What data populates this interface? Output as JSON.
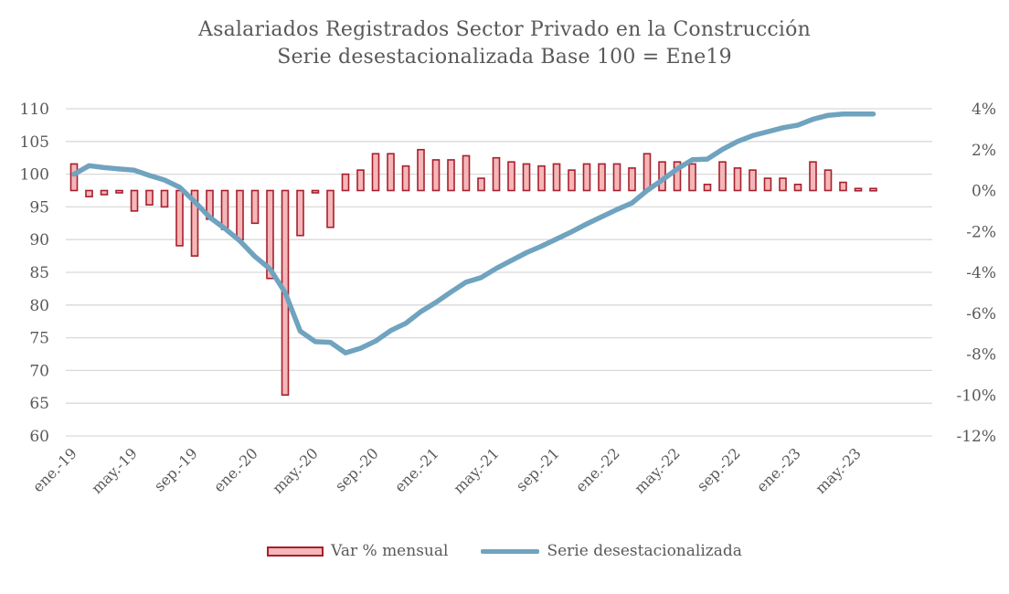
{
  "chart_data": {
    "type": "bar+line",
    "title": "Asalariados Registrados Sector Privado en la Construcción",
    "subtitle": "Serie desestacionalizada Base 100 = Ene19",
    "x_tick_labels": [
      "ene.-19",
      "may.-19",
      "sep.-19",
      "ene.-20",
      "may.-20",
      "sep.-20",
      "ene.-21",
      "may.-21",
      "sep.-21",
      "ene.-22",
      "may.-22",
      "sep.-22",
      "ene.-23",
      "may.-23"
    ],
    "x_start": "2019-01",
    "y_left": {
      "ylim": [
        60,
        110
      ],
      "ticks": [
        60,
        65,
        70,
        75,
        80,
        85,
        90,
        95,
        100,
        105,
        110
      ]
    },
    "y_right": {
      "ylim": [
        -12,
        4
      ],
      "ticks": [
        "-12%",
        "-10%",
        "-8%",
        "-6%",
        "-4%",
        "-2%",
        "0%",
        "2%",
        "4%"
      ]
    },
    "grid": true,
    "legend_position": "bottom",
    "series": [
      {
        "name": "Var % mensual",
        "kind": "bar",
        "axis": "right",
        "color": "#a6202c",
        "fill": "#f4b6b9",
        "values": [
          1.3,
          -0.3,
          -0.2,
          -0.1,
          -1.0,
          -0.7,
          -0.8,
          -2.7,
          -3.2,
          -1.4,
          -1.9,
          -2.4,
          -1.6,
          -4.3,
          -10.0,
          -2.2,
          -0.1,
          -1.8,
          0.8,
          1.0,
          1.8,
          1.8,
          1.2,
          2.0,
          1.5,
          1.5,
          1.7,
          0.6,
          1.6,
          1.4,
          1.3,
          1.2,
          1.3,
          1.0,
          1.3,
          1.3,
          1.3,
          1.1,
          1.8,
          1.4,
          1.4,
          1.3,
          0.3,
          1.4,
          1.1,
          1.0,
          0.6,
          0.6,
          0.3,
          1.4,
          1.0,
          0.4,
          0.1,
          0.1
        ]
      },
      {
        "name": "Serie desestacionalizada",
        "kind": "line",
        "axis": "left",
        "color": "#6fa3bf",
        "values": [
          100.0,
          101.3,
          101.0,
          100.8,
          100.6,
          99.8,
          99.1,
          98.0,
          95.8,
          93.4,
          91.7,
          89.8,
          87.4,
          85.5,
          81.9,
          76.0,
          74.4,
          74.3,
          72.7,
          73.4,
          74.5,
          76.1,
          77.2,
          79.0,
          80.4,
          82.0,
          83.5,
          84.2,
          85.6,
          86.8,
          88.0,
          89.0,
          90.1,
          91.2,
          92.4,
          93.5,
          94.6,
          95.6,
          97.5,
          99.1,
          100.8,
          102.2,
          102.3,
          103.8,
          105.0,
          105.9,
          106.5,
          107.1,
          107.5,
          108.4,
          109.0,
          109.2,
          109.2,
          109.2
        ]
      }
    ]
  }
}
